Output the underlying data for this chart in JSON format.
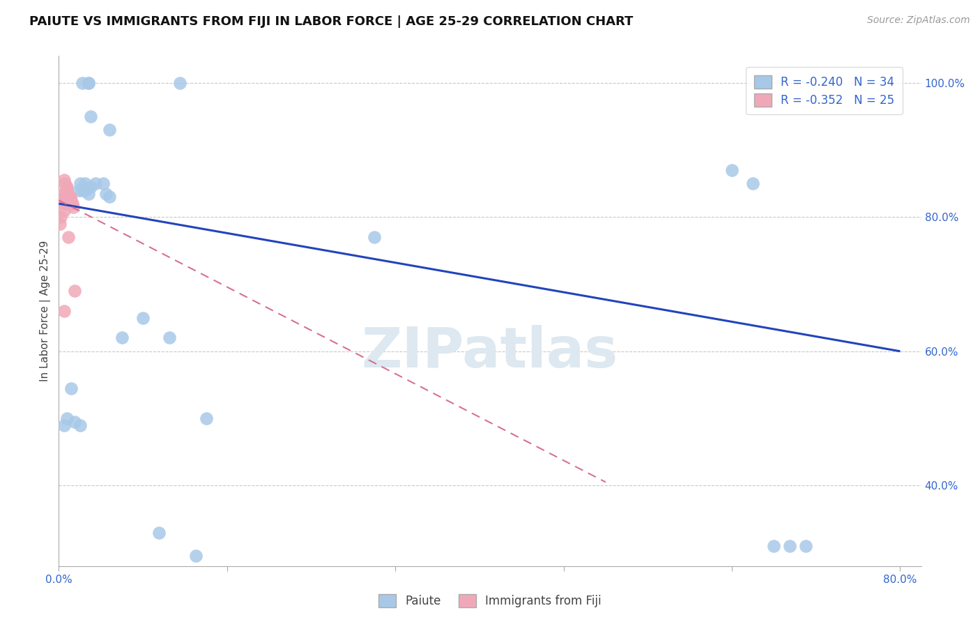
{
  "title": "PAIUTE VS IMMIGRANTS FROM FIJI IN LABOR FORCE | AGE 25-29 CORRELATION CHART",
  "source": "Source: ZipAtlas.com",
  "ylabel": "In Labor Force | Age 25-29",
  "blue_R": -0.24,
  "blue_N": 34,
  "pink_R": -0.352,
  "pink_N": 25,
  "legend_label_blue": "Paiute",
  "legend_label_pink": "Immigrants from Fiji",
  "xlim": [
    0.0,
    0.82
  ],
  "ylim": [
    0.28,
    1.04
  ],
  "xticks": [
    0.0,
    0.16,
    0.32,
    0.48,
    0.64,
    0.8
  ],
  "xticklabels": [
    "0.0%",
    "",
    "",
    "",
    "",
    "80.0%"
  ],
  "yticks_right": [
    0.4,
    0.6,
    0.8,
    1.0
  ],
  "yticklabels_right": [
    "40.0%",
    "60.0%",
    "80.0%",
    "100.0%"
  ],
  "blue_x": [
    0.022,
    0.028,
    0.028,
    0.115,
    0.03,
    0.048,
    0.019,
    0.02,
    0.025,
    0.035,
    0.042,
    0.03,
    0.025,
    0.022,
    0.045,
    0.028,
    0.048,
    0.08,
    0.3,
    0.64,
    0.66,
    0.005,
    0.008,
    0.012,
    0.06,
    0.02,
    0.015,
    0.105,
    0.14,
    0.095,
    0.13,
    0.68,
    0.695,
    0.71
  ],
  "blue_y": [
    1.0,
    1.0,
    1.0,
    1.0,
    0.95,
    0.93,
    0.84,
    0.85,
    0.85,
    0.85,
    0.85,
    0.845,
    0.84,
    0.84,
    0.835,
    0.835,
    0.83,
    0.65,
    0.77,
    0.87,
    0.85,
    0.49,
    0.5,
    0.545,
    0.62,
    0.49,
    0.495,
    0.62,
    0.5,
    0.33,
    0.295,
    0.31,
    0.31,
    0.31
  ],
  "pink_x": [
    0.001,
    0.002,
    0.003,
    0.004,
    0.005,
    0.005,
    0.006,
    0.006,
    0.007,
    0.007,
    0.008,
    0.008,
    0.008,
    0.009,
    0.01,
    0.01,
    0.011,
    0.012,
    0.012,
    0.013,
    0.014,
    0.015,
    0.005,
    0.007,
    0.009
  ],
  "pink_y": [
    0.79,
    0.8,
    0.835,
    0.825,
    0.855,
    0.82,
    0.85,
    0.83,
    0.845,
    0.84,
    0.845,
    0.84,
    0.835,
    0.83,
    0.83,
    0.83,
    0.83,
    0.825,
    0.82,
    0.82,
    0.815,
    0.69,
    0.81,
    0.82,
    0.77
  ],
  "pink_extra_x": [
    0.005
  ],
  "pink_extra_y": [
    0.66
  ],
  "blue_line_x": [
    0.0,
    0.8
  ],
  "blue_line_y": [
    0.82,
    0.6
  ],
  "pink_line_x": [
    0.0,
    0.52
  ],
  "pink_line_y": [
    0.825,
    0.405
  ],
  "grid_color": "#c8c8c8",
  "blue_color": "#a8c8e8",
  "pink_color": "#f0a8b8",
  "blue_line_color": "#2244bb",
  "pink_line_color": "#d87090",
  "background_color": "#ffffff",
  "watermark_text": "ZIPatlas",
  "watermark_color": "#dde8f0",
  "title_fontsize": 13,
  "axis_label_fontsize": 11,
  "tick_fontsize": 11,
  "legend_fontsize": 12,
  "source_fontsize": 10
}
